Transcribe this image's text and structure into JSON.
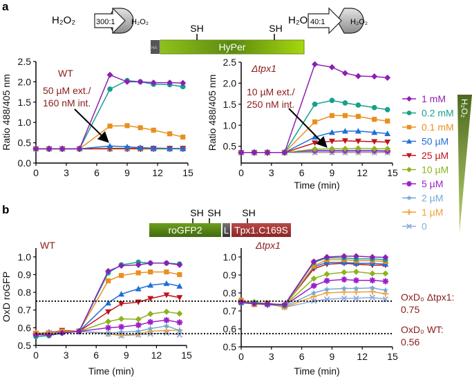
{
  "panels": {
    "a": "a",
    "b": "b"
  },
  "diagram_a": {
    "left_outside": "H₂O₂",
    "left_ratio": "300:1",
    "left_inside": "H₂O₂",
    "right_outside": "H₂O₂",
    "right_ratio": "40:1",
    "right_inside": "H₂O₂",
    "tag": "HA",
    "protein": "HyPer",
    "thiol1": "SH",
    "thiol2": "SH"
  },
  "diagram_b": {
    "protein1": "roGFP2",
    "linker": "L",
    "protein2": "Tpx1.C169S",
    "thiol1": "SH",
    "thiol2": "SH",
    "thiol3": "SH"
  },
  "annotations": {
    "a_left_strain": "WT",
    "a_left_note1": "50 µM ext./",
    "a_left_note2": "160 nM int.",
    "a_right_strain": "Δtpx1",
    "a_right_note1": "10 µM ext./",
    "a_right_note2": "250 nM int.",
    "b_left_strain": "WT",
    "b_right_strain": "Δtpx1",
    "oxd_tpx1_label": "OxD₀ Δtpx1:",
    "oxd_tpx1_value": "0.75",
    "oxd_wt_label": "OxD₀ WT:",
    "oxd_wt_value": "0.56"
  },
  "legend": {
    "gradient_label": "H₂O₂",
    "items": [
      {
        "label": "1 mM",
        "color": "#8c1fb5",
        "marker": "diamond"
      },
      {
        "label": "0.2 mM",
        "color": "#17a08c",
        "marker": "circle"
      },
      {
        "label": "0.1 mM",
        "color": "#e8901e",
        "marker": "square"
      },
      {
        "label": "50 µM",
        "color": "#1f6fd6",
        "marker": "tri-up"
      },
      {
        "label": "25 µM",
        "color": "#c0141a",
        "marker": "tri-down"
      },
      {
        "label": "10 µM",
        "color": "#8db31f",
        "marker": "diamond"
      },
      {
        "label": "5 µM",
        "color": "#9b1fc8",
        "marker": "asterisk"
      },
      {
        "label": "2 µM",
        "color": "#6fa8dc",
        "marker": "star"
      },
      {
        "label": "1 µM",
        "color": "#f0a030",
        "marker": "plus"
      },
      {
        "label": "0",
        "color": "#8faadc",
        "marker": "x"
      }
    ]
  },
  "chart_data": [
    {
      "type": "line",
      "title": "WT",
      "xlabel": "",
      "ylabel": "Ratio 488/405 nm",
      "xlim": [
        0,
        15
      ],
      "ylim": [
        0,
        2.5
      ],
      "xticks": [
        "0",
        "3",
        "6",
        "9",
        "12",
        "15"
      ],
      "yticks": [
        "0.0",
        "0.5",
        "1.0",
        "1.5",
        "2.0",
        "2.5"
      ],
      "x": [
        0,
        1.3,
        2.6,
        4.3,
        7.3,
        9,
        10.3,
        11.6,
        13.2,
        14.5
      ],
      "series": [
        {
          "name": "1 mM",
          "values": [
            0.35,
            0.35,
            0.35,
            0.35,
            2.17,
            2.0,
            2.0,
            1.98,
            1.98,
            1.97
          ]
        },
        {
          "name": "0.2 mM",
          "values": [
            0.35,
            0.35,
            0.35,
            0.35,
            1.82,
            2.03,
            2.0,
            1.94,
            1.93,
            1.88
          ]
        },
        {
          "name": "0.1 mM",
          "values": [
            0.35,
            0.35,
            0.35,
            0.35,
            0.91,
            0.92,
            0.87,
            0.81,
            0.72,
            0.64
          ]
        },
        {
          "name": "50 µM",
          "values": [
            0.35,
            0.35,
            0.35,
            0.35,
            0.42,
            0.4,
            0.38,
            0.37,
            0.36,
            0.36
          ]
        },
        {
          "name": "25 µM",
          "values": [
            0.35,
            0.35,
            0.35,
            0.35,
            0.36,
            0.36,
            0.36,
            0.36,
            0.36,
            0.36
          ]
        },
        {
          "name": "10 µM",
          "values": [
            0.35,
            0.35,
            0.35,
            0.35,
            0.35,
            0.35,
            0.35,
            0.35,
            0.35,
            0.35
          ]
        },
        {
          "name": "5 µM",
          "values": [
            0.35,
            0.35,
            0.35,
            0.35,
            0.35,
            0.35,
            0.35,
            0.35,
            0.35,
            0.35
          ]
        },
        {
          "name": "2 µM",
          "values": [
            0.35,
            0.35,
            0.35,
            0.35,
            0.35,
            0.35,
            0.35,
            0.35,
            0.35,
            0.35
          ]
        },
        {
          "name": "1 µM",
          "values": [
            0.35,
            0.35,
            0.35,
            0.35,
            0.35,
            0.35,
            0.35,
            0.35,
            0.35,
            0.35
          ]
        },
        {
          "name": "0",
          "values": [
            0.35,
            0.35,
            0.35,
            0.35,
            0.35,
            0.35,
            0.35,
            0.35,
            0.35,
            0.35
          ]
        }
      ]
    },
    {
      "type": "line",
      "title": "Δtpx1",
      "xlabel": "Time (min)",
      "ylabel": "Ratio 488/405 nm",
      "xlim": [
        0,
        15
      ],
      "ylim": [
        0.1,
        2.5
      ],
      "xticks": [
        "0",
        "3",
        "6",
        "9",
        "12",
        "15"
      ],
      "yticks": [
        "0.5",
        "1.0",
        "1.5",
        "2.0",
        "2.5"
      ],
      "x": [
        0,
        1.3,
        2.6,
        4.3,
        7.3,
        9,
        10.3,
        11.6,
        13.2,
        14.5
      ],
      "series": [
        {
          "name": "1 mM",
          "values": [
            0.35,
            0.35,
            0.35,
            0.35,
            2.45,
            2.38,
            2.24,
            2.17,
            2.16,
            2.13
          ]
        },
        {
          "name": "0.2 mM",
          "values": [
            0.35,
            0.35,
            0.35,
            0.35,
            1.5,
            1.59,
            1.53,
            1.48,
            1.42,
            1.37
          ]
        },
        {
          "name": "0.1 mM",
          "values": [
            0.35,
            0.35,
            0.35,
            0.35,
            1.08,
            1.23,
            1.23,
            1.21,
            1.14,
            1.1
          ]
        },
        {
          "name": "50 µM",
          "values": [
            0.35,
            0.35,
            0.35,
            0.35,
            0.72,
            0.83,
            0.86,
            0.86,
            0.83,
            0.8
          ]
        },
        {
          "name": "25 µM",
          "values": [
            0.35,
            0.35,
            0.35,
            0.35,
            0.58,
            0.62,
            0.63,
            0.62,
            0.61,
            0.6
          ]
        },
        {
          "name": "10 µM",
          "values": [
            0.35,
            0.35,
            0.35,
            0.35,
            0.43,
            0.44,
            0.44,
            0.45,
            0.44,
            0.44
          ]
        },
        {
          "name": "5 µM",
          "values": [
            0.35,
            0.35,
            0.35,
            0.35,
            0.4,
            0.4,
            0.4,
            0.4,
            0.4,
            0.39
          ]
        },
        {
          "name": "2 µM",
          "values": [
            0.35,
            0.35,
            0.35,
            0.35,
            0.37,
            0.37,
            0.37,
            0.37,
            0.37,
            0.37
          ]
        },
        {
          "name": "1 µM",
          "values": [
            0.35,
            0.35,
            0.35,
            0.35,
            0.36,
            0.36,
            0.36,
            0.36,
            0.36,
            0.36
          ]
        },
        {
          "name": "0",
          "values": [
            0.35,
            0.35,
            0.35,
            0.35,
            0.35,
            0.35,
            0.35,
            0.35,
            0.35,
            0.35
          ]
        }
      ]
    },
    {
      "type": "line",
      "title": "WT",
      "xlabel": "Time (min)",
      "ylabel": "OxD roGFP",
      "xlim": [
        0,
        15
      ],
      "ylim": [
        0.5,
        1.05
      ],
      "xticks": [
        "0",
        "3",
        "6",
        "9",
        "12",
        "15"
      ],
      "yticks": [
        "0.5",
        "0.6",
        "0.7",
        "0.8",
        "0.9",
        "1.0"
      ],
      "x": [
        0,
        1.3,
        2.6,
        4.3,
        7.2,
        8.5,
        10.2,
        11.4,
        13,
        14.3
      ],
      "reference_lines": [
        0.75,
        0.567
      ],
      "series": [
        {
          "name": "1 mM",
          "values": [
            0.56,
            0.56,
            0.57,
            0.58,
            0.92,
            0.95,
            0.955,
            0.965,
            0.965,
            0.955
          ]
        },
        {
          "name": "0.2 mM",
          "values": [
            0.55,
            0.555,
            0.57,
            0.58,
            0.91,
            0.955,
            0.97,
            0.965,
            0.965,
            0.96
          ]
        },
        {
          "name": "0.1 mM",
          "values": [
            0.57,
            0.57,
            0.58,
            0.58,
            0.865,
            0.895,
            0.91,
            0.915,
            0.915,
            0.9
          ]
        },
        {
          "name": "50 µM",
          "values": [
            0.565,
            0.575,
            0.58,
            0.58,
            0.74,
            0.79,
            0.82,
            0.84,
            0.85,
            0.835
          ]
        },
        {
          "name": "25 µM",
          "values": [
            0.565,
            0.57,
            0.585,
            0.58,
            0.69,
            0.735,
            0.745,
            0.765,
            0.785,
            0.77
          ]
        },
        {
          "name": "10 µM",
          "values": [
            0.565,
            0.57,
            0.58,
            0.58,
            0.635,
            0.65,
            0.648,
            0.678,
            0.69,
            0.68
          ]
        },
        {
          "name": "5 µM",
          "values": [
            0.565,
            0.57,
            0.575,
            0.58,
            0.6,
            0.605,
            0.615,
            0.632,
            0.643,
            0.63
          ]
        },
        {
          "name": "2 µM",
          "values": [
            0.565,
            0.575,
            0.575,
            0.58,
            0.57,
            0.575,
            0.58,
            0.595,
            0.61,
            0.585
          ]
        },
        {
          "name": "1 µM",
          "values": [
            0.57,
            0.57,
            0.58,
            0.58,
            0.565,
            0.56,
            0.565,
            0.58,
            0.585,
            0.585
          ]
        },
        {
          "name": "0",
          "values": [
            0.565,
            0.57,
            0.575,
            0.58,
            0.565,
            0.555,
            0.56,
            0.565,
            0.57,
            0.56
          ]
        }
      ]
    },
    {
      "type": "line",
      "title": "Δtpx1",
      "xlabel": "Time (min)",
      "ylabel": "",
      "xlim": [
        0,
        15
      ],
      "ylim": [
        0.5,
        1.05
      ],
      "xticks": [
        "0",
        "3",
        "6",
        "9",
        "12",
        "15"
      ],
      "yticks": [
        "0.5",
        "0.6",
        "0.7",
        "0.8",
        "0.9",
        "1.0"
      ],
      "x": [
        0,
        1.3,
        2.6,
        4.3,
        7.2,
        8.5,
        10.2,
        11.4,
        13,
        14.3
      ],
      "reference_lines": [
        0.75,
        0.567
      ],
      "series": [
        {
          "name": "1 mM",
          "values": [
            0.75,
            0.74,
            0.74,
            0.735,
            0.975,
            1.0,
            1.005,
            1.005,
            1.0,
            0.998
          ]
        },
        {
          "name": "0.2 mM",
          "values": [
            0.745,
            0.745,
            0.74,
            0.73,
            0.97,
            0.995,
            0.995,
            0.99,
            0.99,
            0.985
          ]
        },
        {
          "name": "0.1 mM",
          "values": [
            0.76,
            0.735,
            0.745,
            0.725,
            0.95,
            0.985,
            0.985,
            0.98,
            0.98,
            0.975
          ]
        },
        {
          "name": "50 µM",
          "values": [
            0.75,
            0.74,
            0.74,
            0.73,
            0.945,
            0.97,
            0.97,
            0.965,
            0.965,
            0.96
          ]
        },
        {
          "name": "25 µM",
          "values": [
            0.75,
            0.74,
            0.74,
            0.73,
            0.935,
            0.96,
            0.965,
            0.96,
            0.955,
            0.955
          ]
        },
        {
          "name": "10 µM",
          "values": [
            0.75,
            0.75,
            0.74,
            0.73,
            0.88,
            0.905,
            0.915,
            0.918,
            0.908,
            0.908
          ]
        },
        {
          "name": "5 µM",
          "values": [
            0.745,
            0.74,
            0.735,
            0.73,
            0.84,
            0.868,
            0.875,
            0.87,
            0.87,
            0.865
          ]
        },
        {
          "name": "2 µM",
          "values": [
            0.75,
            0.74,
            0.74,
            0.725,
            0.8,
            0.82,
            0.825,
            0.825,
            0.828,
            0.815
          ]
        },
        {
          "name": "1 µM",
          "values": [
            0.75,
            0.74,
            0.74,
            0.72,
            0.78,
            0.8,
            0.805,
            0.805,
            0.807,
            0.795
          ]
        },
        {
          "name": "0",
          "values": [
            0.75,
            0.74,
            0.74,
            0.72,
            0.755,
            0.765,
            0.77,
            0.77,
            0.775,
            0.765
          ]
        }
      ]
    }
  ]
}
